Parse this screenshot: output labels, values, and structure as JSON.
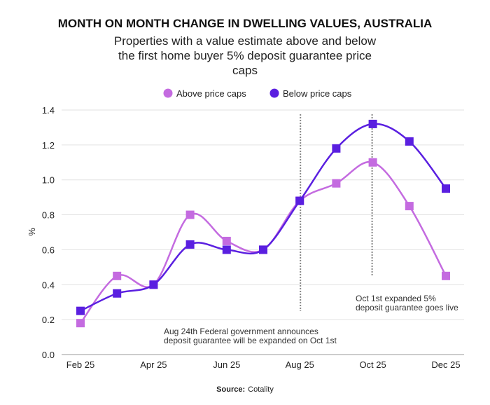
{
  "chart_data": {
    "type": "line",
    "title": "MONTH ON MONTH CHANGE IN DWELLING VALUES, AUSTRALIA",
    "subtitle": "Properties with a value estimate above and below the first home buyer 5% deposit guarantee price caps",
    "xlabel": "",
    "ylabel": "%",
    "ylim": [
      0,
      1.4
    ],
    "yticks": [
      "0.0",
      "0.2",
      "0.4",
      "0.6",
      "0.8",
      "1.0",
      "1.2",
      "1.4"
    ],
    "categories": [
      "Feb 25",
      "Mar 25",
      "Apr 25",
      "May 25",
      "Jun 25",
      "Jul 25",
      "Aug 25",
      "Sep 25",
      "Oct 25",
      "Nov 25",
      "Dec 25"
    ],
    "xtick_labels": [
      "Feb 25",
      "Apr 25",
      "Jun 25",
      "Aug 25",
      "Oct 25",
      "Dec 25"
    ],
    "grid": true,
    "legend_position": "top",
    "series": [
      {
        "name": "Above price caps",
        "color": "#c46be0",
        "values": [
          0.18,
          0.45,
          0.4,
          0.8,
          0.65,
          0.6,
          0.88,
          0.98,
          1.1,
          0.85,
          0.45
        ]
      },
      {
        "name": "Below price caps",
        "color": "#5a1fe0",
        "values": [
          0.25,
          0.35,
          0.4,
          0.63,
          0.6,
          0.6,
          0.88,
          1.18,
          1.32,
          1.22,
          0.95
        ]
      }
    ],
    "annotations": [
      {
        "category": "Aug 25",
        "text_lines": [
          "Aug 24th Federal government announces",
          "deposit guarantee will be expanded on Oct 1st"
        ]
      },
      {
        "category": "Oct 25",
        "text_lines": [
          "Oct 1st expanded 5%",
          "deposit guarantee goes live"
        ]
      }
    ]
  },
  "source": {
    "label": "Source:",
    "value": "Cotality"
  }
}
